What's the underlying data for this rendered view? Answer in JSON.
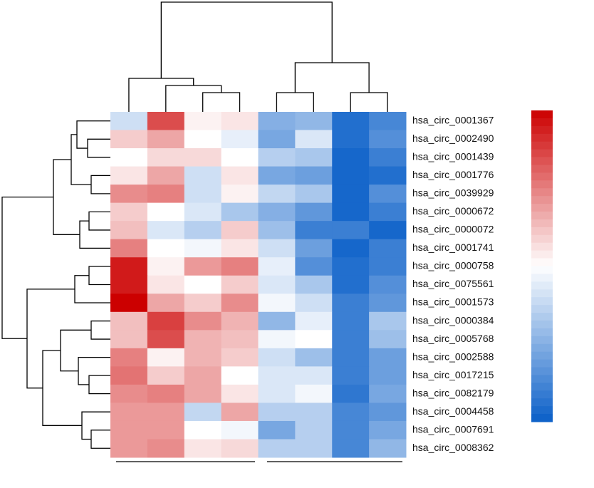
{
  "chart_data": {
    "type": "heatmap",
    "rows": [
      "hsa_circ_0001367",
      "hsa_circ_0002490",
      "hsa_circ_0001439",
      "hsa_circ_0001776",
      "hsa_circ_0039929",
      "hsa_circ_0000672",
      "hsa_circ_0000072",
      "hsa_circ_0001741",
      "hsa_circ_0000758",
      "hsa_circ_0075561",
      "hsa_circ_0001573",
      "hsa_circ_0000384",
      "hsa_circ_0005768",
      "hsa_circ_0002588",
      "hsa_circ_0017215",
      "hsa_circ_0082179",
      "hsa_circ_0004458",
      "hsa_circ_0007691",
      "hsa_circ_0008362"
    ],
    "values": [
      [
        -0.2,
        0.7,
        0.05,
        0.1,
        -0.5,
        -0.45,
        -0.9,
        -0.75
      ],
      [
        0.2,
        0.35,
        0,
        -0.1,
        -0.55,
        -0.15,
        -0.9,
        -0.7
      ],
      [
        0,
        0.15,
        0.15,
        0,
        -0.3,
        -0.35,
        -0.95,
        -0.8
      ],
      [
        0.1,
        0.35,
        -0.2,
        0.1,
        -0.55,
        -0.6,
        -0.95,
        -0.9
      ],
      [
        0.45,
        0.5,
        -0.2,
        0.05,
        -0.25,
        -0.35,
        -0.95,
        -0.7
      ],
      [
        0.2,
        0,
        -0.15,
        -0.35,
        -0.5,
        -0.65,
        -0.95,
        -0.8
      ],
      [
        0.25,
        -0.15,
        -0.3,
        0.2,
        -0.4,
        -0.8,
        -0.8,
        -0.95
      ],
      [
        0.5,
        0,
        -0.05,
        0.1,
        -0.2,
        -0.6,
        -0.95,
        -0.8
      ],
      [
        0.9,
        0.05,
        0.4,
        0.5,
        -0.1,
        -0.7,
        -0.9,
        -0.8
      ],
      [
        0.9,
        0.1,
        0,
        0.2,
        -0.15,
        -0.35,
        -0.9,
        -0.7
      ],
      [
        1,
        0.35,
        0.2,
        0.45,
        -0.05,
        -0.2,
        -0.8,
        -0.65
      ],
      [
        0.25,
        0.75,
        0.45,
        0.3,
        -0.45,
        -0.1,
        -0.8,
        -0.35
      ],
      [
        0.25,
        0.7,
        0.3,
        0.25,
        -0.05,
        0,
        -0.8,
        -0.4
      ],
      [
        0.5,
        0.05,
        0.3,
        0.2,
        -0.2,
        -0.4,
        -0.8,
        -0.6
      ],
      [
        0.55,
        0.2,
        0.35,
        0,
        -0.15,
        -0.15,
        -0.8,
        -0.6
      ],
      [
        0.45,
        0.5,
        0.35,
        0.1,
        -0.15,
        -0.05,
        -0.85,
        -0.55
      ],
      [
        0.4,
        0.4,
        -0.25,
        0.35,
        -0.3,
        -0.3,
        -0.75,
        -0.65
      ],
      [
        0.4,
        0.4,
        0,
        -0.05,
        -0.55,
        -0.3,
        -0.75,
        -0.55
      ],
      [
        0.4,
        0.45,
        0.1,
        0.15,
        -0.3,
        -0.3,
        -0.75,
        -0.45
      ]
    ],
    "zlim": [
      -1,
      1
    ],
    "colorscale": [
      "#0a5fc8",
      "#ffffff",
      "#cc0000"
    ]
  }
}
